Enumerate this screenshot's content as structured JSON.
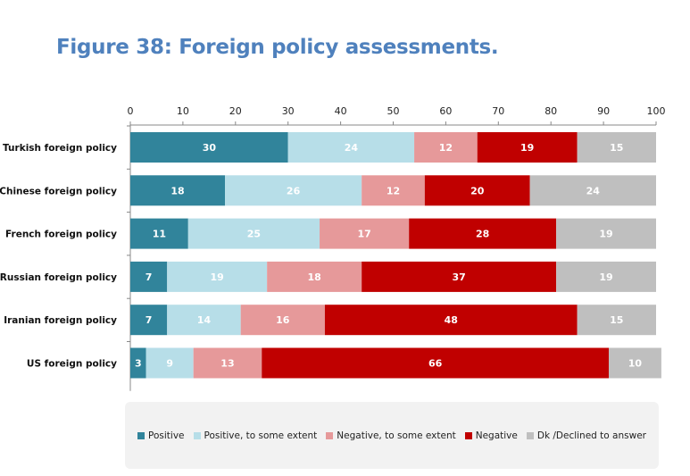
{
  "chart_data": {
    "type": "bar",
    "orientation": "horizontal",
    "stacked": true,
    "title": "Figure 38: Foreign policy assessments.",
    "xlim": [
      0,
      100
    ],
    "xticks": [
      0,
      10,
      20,
      30,
      40,
      50,
      60,
      70,
      80,
      90,
      100
    ],
    "xaxis_position": "top",
    "grid": false,
    "legend_position": "bottom",
    "categories": [
      "Turkish foreign policy",
      "Chinese foreign policy",
      "French foreign policy",
      "Russian foreign policy",
      "Iranian foreign policy",
      "US foreign policy"
    ],
    "series": [
      {
        "name": "Positive",
        "color": "#31849B",
        "label_color": "#ffffff",
        "values": [
          30,
          18,
          11,
          7,
          7,
          3
        ]
      },
      {
        "name": "Positive, to some extent",
        "color": "#B7DEE8",
        "label_color": "#ffffff",
        "values": [
          24,
          26,
          25,
          19,
          14,
          9
        ]
      },
      {
        "name": "Negative, to some extent",
        "color": "#E6999A",
        "label_color": "#ffffff",
        "values": [
          12,
          12,
          17,
          18,
          16,
          13
        ]
      },
      {
        "name": "Negative",
        "color": "#C00000",
        "label_color": "#ffffff",
        "values": [
          19,
          20,
          28,
          37,
          48,
          66
        ]
      },
      {
        "name": "Dk /Declined to answer",
        "color": "#BFBFBF",
        "label_color": "#ffffff",
        "values": [
          15,
          24,
          19,
          19,
          15,
          10
        ]
      }
    ]
  }
}
